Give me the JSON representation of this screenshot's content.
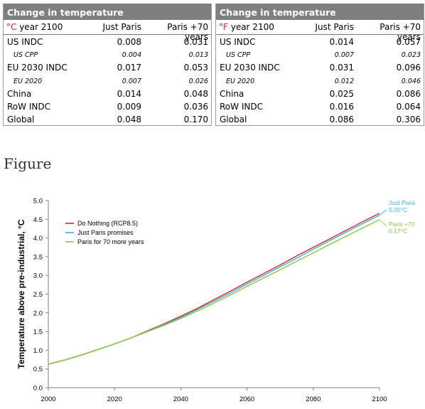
{
  "tables": [
    {
      "title": "Change in temperature",
      "unit_symbol": "°C",
      "unit_rest": " year 2100",
      "col1": "Just Paris",
      "col2": "Paris +70 years",
      "rows": [
        {
          "label": "US INDC",
          "v1": "0.008",
          "v2": "0.031",
          "sub": false
        },
        {
          "label": "US CPP",
          "v1": "0.004",
          "v2": "0.013",
          "sub": true
        },
        {
          "label": "EU 2030 INDC",
          "v1": "0.017",
          "v2": "0.053",
          "sub": false
        },
        {
          "label": "EU 2020",
          "v1": "0.007",
          "v2": "0.026",
          "sub": true
        },
        {
          "label": "China",
          "v1": "0.014",
          "v2": "0.048",
          "sub": false
        },
        {
          "label": "RoW INDC",
          "v1": "0.009",
          "v2": "0.036",
          "sub": false
        },
        {
          "label": "Global",
          "v1": "0.048",
          "v2": "0.170",
          "sub": false
        }
      ]
    },
    {
      "title": "Change in temperature",
      "unit_symbol": "°F",
      "unit_rest": " year 2100",
      "col1": "Just Paris",
      "col2": "Paris +70 years",
      "rows": [
        {
          "label": "US INDC",
          "v1": "0.014",
          "v2": "0.057",
          "sub": false
        },
        {
          "label": "US CPP",
          "v1": "0.007",
          "v2": "0.023",
          "sub": true
        },
        {
          "label": "EU 2030 INDC",
          "v1": "0.031",
          "v2": "0.096",
          "sub": false
        },
        {
          "label": "EU 2020",
          "v1": "0.012",
          "v2": "0.046",
          "sub": true
        },
        {
          "label": "China",
          "v1": "0.025",
          "v2": "0.086",
          "sub": false
        },
        {
          "label": "RoW INDC",
          "v1": "0.016",
          "v2": "0.064",
          "sub": false
        },
        {
          "label": "Global",
          "v1": "0.086",
          "v2": "0.306",
          "sub": false
        }
      ]
    }
  ],
  "figure_heading": "Figure",
  "chart_data": {
    "type": "line",
    "title": "",
    "xlabel": "",
    "ylabel": "Temperature above pre-industrial, °C",
    "xlim": [
      2000,
      2100
    ],
    "ylim": [
      0.0,
      5.0
    ],
    "xticks": [
      "2000",
      "2020",
      "2040",
      "2060",
      "2080",
      "2100"
    ],
    "yticks": [
      "0.0",
      "0.5",
      "1.0",
      "1.5",
      "2.0",
      "2.5",
      "3.0",
      "3.5",
      "4.0",
      "4.5",
      "5.0"
    ],
    "grid": false,
    "legend_position": "top-left",
    "series": [
      {
        "name": "Do Nothing (RCP8.5)",
        "color": "#d62728",
        "x": [
          2000,
          2005,
          2010,
          2015,
          2020,
          2025,
          2030,
          2035,
          2040,
          2045,
          2050,
          2055,
          2060,
          2065,
          2070,
          2075,
          2080,
          2085,
          2090,
          2095,
          2100
        ],
        "y": [
          0.63,
          0.74,
          0.87,
          1.02,
          1.17,
          1.33,
          1.52,
          1.71,
          1.91,
          2.12,
          2.35,
          2.58,
          2.82,
          3.05,
          3.28,
          3.52,
          3.75,
          3.98,
          4.21,
          4.44,
          4.66
        ]
      },
      {
        "name": "Just Paris promises",
        "color": "#3aaee0",
        "x": [
          2000,
          2005,
          2010,
          2015,
          2020,
          2025,
          2030,
          2035,
          2040,
          2045,
          2050,
          2055,
          2060,
          2065,
          2070,
          2075,
          2080,
          2085,
          2090,
          2095,
          2100
        ],
        "y": [
          0.63,
          0.74,
          0.87,
          1.02,
          1.17,
          1.33,
          1.51,
          1.69,
          1.88,
          2.09,
          2.31,
          2.53,
          2.77,
          3.0,
          3.23,
          3.46,
          3.7,
          3.93,
          4.16,
          4.39,
          4.61
        ]
      },
      {
        "name": "Paris for 70 more years",
        "color": "#8cc63f",
        "x": [
          2000,
          2005,
          2010,
          2015,
          2020,
          2025,
          2030,
          2035,
          2040,
          2045,
          2050,
          2055,
          2060,
          2065,
          2070,
          2075,
          2080,
          2085,
          2090,
          2095,
          2100
        ],
        "y": [
          0.63,
          0.74,
          0.87,
          1.02,
          1.17,
          1.33,
          1.5,
          1.67,
          1.85,
          2.05,
          2.26,
          2.48,
          2.71,
          2.93,
          3.15,
          3.38,
          3.6,
          3.83,
          4.05,
          4.27,
          4.49
        ]
      }
    ],
    "annotations": [
      {
        "line1": "Just Paris",
        "line2": "0.05°C",
        "color": "#3aaee0"
      },
      {
        "line1": "Paris +70",
        "line2": "0.17°C",
        "color": "#8cc63f"
      }
    ]
  }
}
